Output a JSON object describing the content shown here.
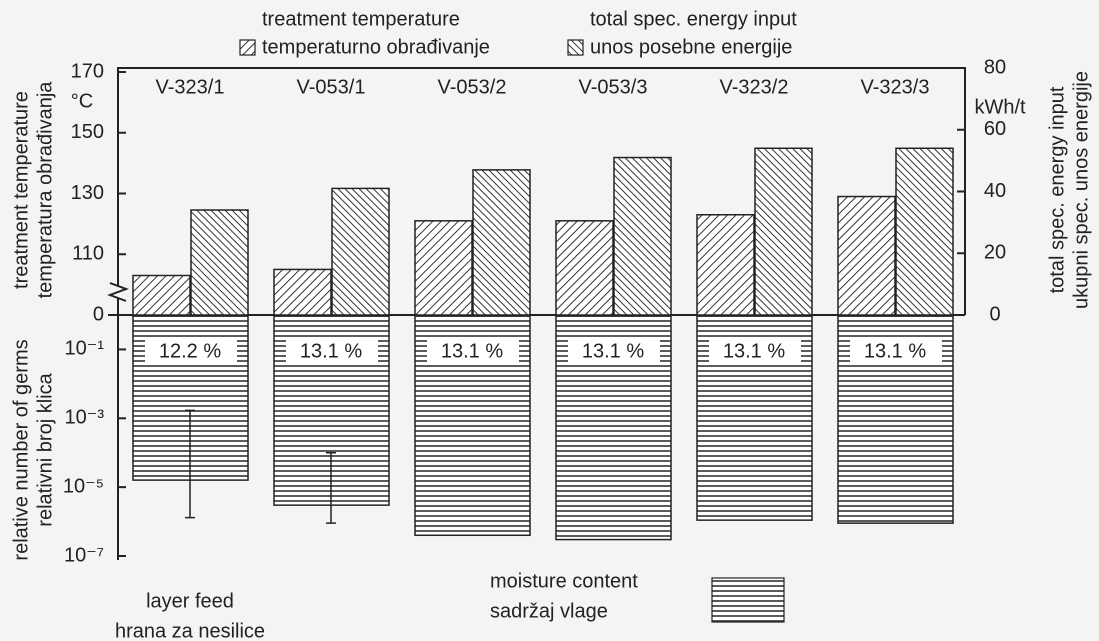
{
  "chart_data": [
    {
      "type": "bar",
      "categories": [
        "V-323/1",
        "V-053/1",
        "V-053/2",
        "V-053/3",
        "V-323/2",
        "V-323/3"
      ],
      "series": [
        {
          "name": "treatment temperature",
          "name_2": "temperaturno obrađivanje",
          "pattern": "hatch-right",
          "axis": "y",
          "values": [
            103,
            105,
            121,
            121,
            123,
            129
          ]
        },
        {
          "name": "total spec. energy input",
          "name_2": "unos posebne energije",
          "pattern": "hatch-left",
          "axis": "y2",
          "values": [
            34,
            41,
            47,
            51,
            54,
            54
          ]
        }
      ],
      "ylabel": [
        "treatment temperature",
        "temperatura obrađivanja"
      ],
      "yunit": "°C",
      "ylim": [
        90,
        170
      ],
      "yticks": [
        110,
        130,
        150,
        170
      ],
      "axis_break": {
        "from": 0,
        "to": 90
      },
      "y2label": [
        "total spec. energy input",
        "ukupni spec. unos energije"
      ],
      "y2unit": "kWh/t",
      "y2lim": [
        0,
        80
      ],
      "y2ticks": [
        0,
        20,
        40,
        60,
        80
      ]
    },
    {
      "type": "bar",
      "log_scale": true,
      "ylabel": [
        "relative number of germs",
        "relativni broj klica"
      ],
      "ylim": [
        1,
        1e-07
      ],
      "yticks": [
        {
          "value": 0.1,
          "label": "10⁻¹"
        },
        {
          "value": 0.001,
          "label": "10⁻³"
        },
        {
          "value": 1e-05,
          "label": "10⁻⁵"
        },
        {
          "value": 1e-07,
          "label": "10⁻⁷"
        }
      ],
      "values": [
        1.6e-05,
        3e-06,
        4e-07,
        3e-07,
        1.1e-06,
        9e-07
      ],
      "error_low": [
        1.3e-06,
        9e-07,
        null,
        null,
        null,
        null
      ],
      "error_high": [
        0.0017,
        0.0001,
        null,
        null,
        null,
        null
      ],
      "moisture": {
        "name": "moisture content",
        "name_2": "sadržaj vlage",
        "values": [
          12.2,
          13.1,
          13.1,
          13.1,
          13.1,
          13.1
        ],
        "value_labels": [
          "12.2 %",
          "13.1 %",
          "13.1 %",
          "13.1 %",
          "13.1 %",
          "13.1 %"
        ]
      },
      "footer": [
        "layer feed",
        "hrana za nesilice"
      ]
    }
  ]
}
